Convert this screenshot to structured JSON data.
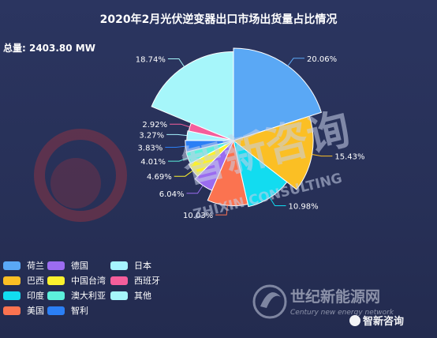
{
  "header": {
    "title": "2020年2月光伏逆变器出口市场出货量占比情况",
    "total_text": "总量: 2403.80 MW"
  },
  "chart_data": {
    "type": "pie",
    "title": "2020年2月光伏逆变器出口市场出货量占比情况",
    "unit": "%",
    "slices": [
      {
        "name": "荷兰",
        "value": 20.06,
        "label": "20.06%",
        "color": "#5aa8f5"
      },
      {
        "name": "巴西",
        "value": 15.43,
        "label": "15.43%",
        "color": "#fbbf24"
      },
      {
        "name": "印度",
        "value": 10.98,
        "label": "10.98%",
        "color": "#12dcf0"
      },
      {
        "name": "美国",
        "value": 10.03,
        "label": "10.03%",
        "color": "#fb7350"
      },
      {
        "name": "德国",
        "value": 6.04,
        "label": "6.04%",
        "color": "#9b6cf0"
      },
      {
        "name": "中国台湾",
        "value": 4.69,
        "label": "4.69%",
        "color": "#fbf12e"
      },
      {
        "name": "澳大利亚",
        "value": 4.01,
        "label": "4.01%",
        "color": "#5cf0dc"
      },
      {
        "name": "智利",
        "value": 3.83,
        "label": "3.83%",
        "color": "#2b7ff5"
      },
      {
        "name": "日本",
        "value": 3.27,
        "label": "3.27%",
        "color": "#a6f4ff"
      },
      {
        "name": "西班牙",
        "value": 2.92,
        "label": "2.92%",
        "color": "#f55e9b"
      },
      {
        "name": "其他",
        "value": 18.74,
        "label": "18.74%",
        "color": "#a6f6fa"
      }
    ],
    "legend_placement": "bottom-left"
  },
  "legend": [
    {
      "name": "荷兰",
      "color": "#5aa8f5"
    },
    {
      "name": "德国",
      "color": "#9b6cf0"
    },
    {
      "name": "日本",
      "color": "#a6f4ff"
    },
    {
      "name": "巴西",
      "color": "#fbbf24"
    },
    {
      "name": "中国台湾",
      "color": "#fbf12e"
    },
    {
      "name": "西班牙",
      "color": "#f55e9b"
    },
    {
      "name": "印度",
      "color": "#12dcf0"
    },
    {
      "name": "澳大利亚",
      "color": "#5cf0dc"
    },
    {
      "name": "其他",
      "color": "#a6f6fa"
    },
    {
      "name": "美国",
      "color": "#fb7350"
    },
    {
      "name": "智利",
      "color": "#2b7ff5"
    }
  ],
  "watermark": {
    "brand_cn": "智新咨询",
    "brand_en": "ZHIXIN CONSULTING",
    "site_cn": "世纪新能源网",
    "site_en": "Century new energy network"
  }
}
